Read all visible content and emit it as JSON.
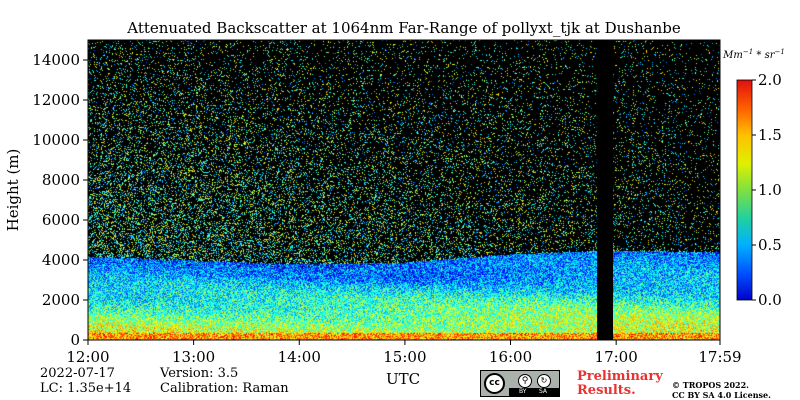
{
  "chart_data": {
    "type": "heatmap",
    "title": "Attenuated Backscatter at 1064nm Far-Range of pollyxt_tjk at Dushanbe",
    "xlabel": "UTC",
    "ylabel": "Height (m)",
    "x_tick_labels": [
      "12:00",
      "13:00",
      "14:00",
      "15:00",
      "16:00",
      "17:00",
      "17:59"
    ],
    "x_tick_hours": [
      12.0,
      13.0,
      14.0,
      15.0,
      16.0,
      17.0,
      17.983
    ],
    "xlim_hours": [
      12.0,
      17.983
    ],
    "y_ticks": [
      0,
      2000,
      4000,
      6000,
      8000,
      10000,
      12000,
      14000
    ],
    "ylim": [
      0,
      15000
    ],
    "colorbar": {
      "label": "Mm^-1 * sr^-1",
      "ticks": [
        0.0,
        0.5,
        1.0,
        1.5,
        2.0
      ],
      "tick_labels": [
        "0.0",
        "0.5",
        "1.0",
        "1.5",
        "2.0"
      ],
      "range": [
        0.0,
        2.0
      ],
      "colormap": "jet"
    },
    "features": {
      "boundary_layer_top_m": [
        4200,
        4000,
        3800,
        3900,
        4300,
        4500,
        4400
      ],
      "data_gap_hours": [
        16.82,
        16.97
      ],
      "surface_layer_top_m": 400
    }
  },
  "info": {
    "date": "2022-07-17",
    "lc": "LC: 1.35e+14",
    "version": "Version: 3.5",
    "calibration": "Calibration: Raman"
  },
  "notice": {
    "preliminary_line1": "Preliminary",
    "preliminary_line2": "Results.",
    "copyright_line1": "© TROPOS 2022.",
    "copyright_line2": "CC BY SA 4.0 License.",
    "badge_cc": "cc",
    "badge_by": "BY",
    "badge_sa": "SA"
  },
  "colors": {
    "background": "#000000",
    "preliminary": "#e8322e",
    "badge": "#aab2ab"
  }
}
